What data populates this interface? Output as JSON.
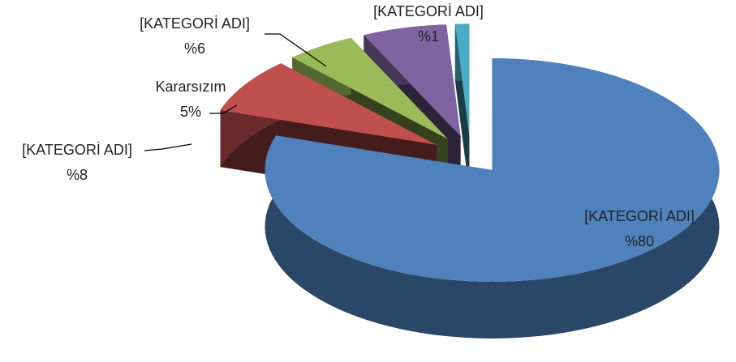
{
  "chart_data": {
    "type": "pie",
    "categories": [
      "[KATEGORİ ADI]",
      "[KATEGORİ ADI]",
      "Kararsızım",
      "[KATEGORİ ADI]",
      "[KATEGORİ ADI]"
    ],
    "values": [
      80,
      8,
      5,
      6,
      1
    ],
    "value_labels": [
      "%80",
      "%8",
      "5%",
      "%6",
      "%1"
    ],
    "colors": [
      "#4f81bd",
      "#c0504d",
      "#9bbb59",
      "#8064a2",
      "#4bacc6"
    ]
  }
}
